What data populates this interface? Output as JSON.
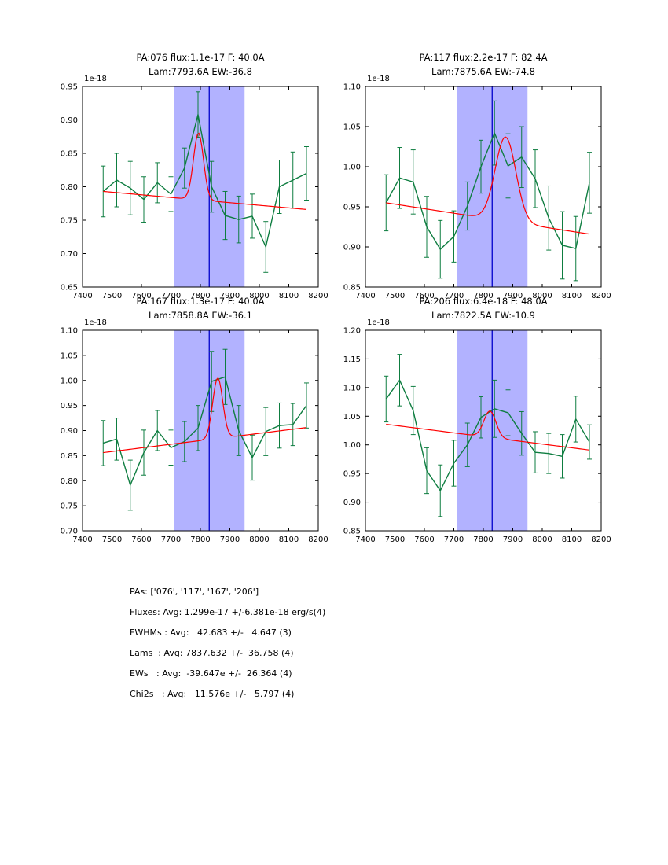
{
  "figure": {
    "background": "#ffffff"
  },
  "colors": {
    "data": "#0e7d40",
    "fit": "#ff0000",
    "vline": "#0000cc",
    "band": "#b2b2ff",
    "axis": "#000000",
    "text": "#000000"
  },
  "chart_data": [
    {
      "type": "line",
      "title_line1": "PA:076 flux:1.1e-17 F: 40.0A",
      "title_line2": "Lam:7793.6A EW:-36.8",
      "offset_label": "1e-18",
      "xlim": [
        7400,
        8200
      ],
      "ylim": [
        0.65,
        0.95
      ],
      "xticks": [
        7400,
        7500,
        7600,
        7700,
        7800,
        7900,
        8000,
        8100,
        8200
      ],
      "yticks": [
        0.65,
        0.7,
        0.75,
        0.8,
        0.85,
        0.9,
        0.95
      ],
      "band": [
        7710,
        7950
      ],
      "vline": 7830,
      "x": [
        7470,
        7516,
        7562,
        7608,
        7654,
        7700,
        7746,
        7792,
        7838,
        7884,
        7930,
        7976,
        8022,
        8068,
        8114,
        8160
      ],
      "y": [
        0.793,
        0.81,
        0.798,
        0.781,
        0.806,
        0.789,
        0.828,
        0.908,
        0.8,
        0.757,
        0.751,
        0.756,
        0.71,
        0.8,
        0.81,
        0.82
      ],
      "yerr": [
        0.038,
        0.04,
        0.04,
        0.034,
        0.03,
        0.026,
        0.03,
        0.034,
        0.038,
        0.036,
        0.035,
        0.033,
        0.038,
        0.04,
        0.042,
        0.04
      ],
      "fit": {
        "center": 7793.6,
        "sigma": 17.0,
        "amplitude": 0.1,
        "cont_start": 0.793,
        "cont_end": 0.766
      }
    },
    {
      "type": "line",
      "title_line1": "PA:117 flux:2.2e-17 F: 82.4A",
      "title_line2": "Lam:7875.6A EW:-74.8",
      "offset_label": "1e-18",
      "xlim": [
        7400,
        8200
      ],
      "ylim": [
        0.85,
        1.1
      ],
      "xticks": [
        7400,
        7500,
        7600,
        7700,
        7800,
        7900,
        8000,
        8100,
        8200
      ],
      "yticks": [
        0.85,
        0.9,
        0.95,
        1.0,
        1.05,
        1.1
      ],
      "band": [
        7710,
        7950
      ],
      "vline": 7830,
      "x": [
        7470,
        7516,
        7562,
        7608,
        7654,
        7700,
        7746,
        7792,
        7838,
        7884,
        7930,
        7976,
        8022,
        8068,
        8114,
        8160
      ],
      "y": [
        0.955,
        0.986,
        0.981,
        0.925,
        0.897,
        0.913,
        0.951,
        1.0,
        1.042,
        1.001,
        1.012,
        0.985,
        0.936,
        0.902,
        0.898,
        0.98
      ],
      "yerr": [
        0.035,
        0.038,
        0.04,
        0.038,
        0.036,
        0.032,
        0.03,
        0.033,
        0.04,
        0.04,
        0.038,
        0.036,
        0.04,
        0.042,
        0.04,
        0.038
      ],
      "fit": {
        "center": 7875.6,
        "sigma": 35.0,
        "amplitude": 0.105,
        "cont_start": 0.955,
        "cont_end": 0.916
      }
    },
    {
      "type": "line",
      "title_line1": "PA:167 flux:1.3e-17 F: 40.0A",
      "title_line2": "Lam:7858.8A EW:-36.1",
      "offset_label": "1e-18",
      "xlim": [
        7400,
        8200
      ],
      "ylim": [
        0.7,
        1.1
      ],
      "xticks": [
        7400,
        7500,
        7600,
        7700,
        7800,
        7900,
        8000,
        8100,
        8200
      ],
      "yticks": [
        0.7,
        0.75,
        0.8,
        0.85,
        0.9,
        0.95,
        1.0,
        1.05,
        1.1
      ],
      "band": [
        7710,
        7950
      ],
      "vline": 7830,
      "x": [
        7470,
        7516,
        7562,
        7608,
        7654,
        7700,
        7746,
        7792,
        7838,
        7884,
        7930,
        7976,
        8022,
        8068,
        8114,
        8160
      ],
      "y": [
        0.875,
        0.883,
        0.791,
        0.856,
        0.9,
        0.866,
        0.878,
        0.905,
        0.998,
        1.007,
        0.9,
        0.846,
        0.898,
        0.91,
        0.912,
        0.95
      ],
      "yerr": [
        0.045,
        0.042,
        0.05,
        0.045,
        0.04,
        0.035,
        0.04,
        0.045,
        0.06,
        0.055,
        0.05,
        0.045,
        0.048,
        0.045,
        0.042,
        0.045
      ],
      "fit": {
        "center": 7858.8,
        "sigma": 17.0,
        "amplitude": 0.121,
        "cont_start": 0.856,
        "cont_end": 0.906
      }
    },
    {
      "type": "line",
      "title_line1": "PA:206 flux:6.4e-18 F: 48.0A",
      "title_line2": "Lam:7822.5A EW:-10.9",
      "offset_label": "1e-18",
      "xlim": [
        7400,
        8200
      ],
      "ylim": [
        0.85,
        1.2
      ],
      "xticks": [
        7400,
        7500,
        7600,
        7700,
        7800,
        7900,
        8000,
        8100,
        8200
      ],
      "yticks": [
        0.85,
        0.9,
        0.95,
        1.0,
        1.05,
        1.1,
        1.15,
        1.2
      ],
      "band": [
        7710,
        7950
      ],
      "vline": 7830,
      "x": [
        7470,
        7516,
        7562,
        7608,
        7654,
        7700,
        7746,
        7792,
        7838,
        7884,
        7930,
        7976,
        8022,
        8068,
        8114,
        8160
      ],
      "y": [
        1.08,
        1.113,
        1.06,
        0.955,
        0.92,
        0.968,
        1.0,
        1.048,
        1.063,
        1.056,
        1.02,
        0.987,
        0.985,
        0.98,
        1.045,
        1.005
      ],
      "yerr": [
        0.04,
        0.045,
        0.042,
        0.04,
        0.045,
        0.04,
        0.038,
        0.036,
        0.05,
        0.04,
        0.038,
        0.036,
        0.035,
        0.038,
        0.04,
        0.03
      ],
      "fit": {
        "center": 7822.5,
        "sigma": 20.4,
        "amplitude": 0.046,
        "cont_start": 1.036,
        "cont_end": 0.991
      }
    }
  ],
  "summary": {
    "lines": [
      "PAs: ['076', '117', '167', '206']",
      "Fluxes: Avg: 1.299e-17 +/-6.381e-18 erg/s(4)",
      "FWHMs : Avg:   42.683 +/-   4.647 (3)",
      "Lams  : Avg: 7837.632 +/-  36.758 (4)",
      "EWs   : Avg:  -39.647e +/-  26.364 (4)",
      "Chi2s   : Avg:   11.576e +/-   5.797 (4)"
    ]
  }
}
